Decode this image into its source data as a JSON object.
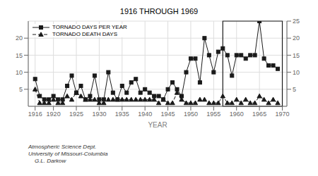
{
  "chart_data": {
    "type": "line",
    "title": "1916 THROUGH 1969",
    "xlabel": "YEAR",
    "x": [
      1916,
      1917,
      1918,
      1919,
      1920,
      1921,
      1922,
      1923,
      1924,
      1925,
      1926,
      1927,
      1928,
      1929,
      1930,
      1931,
      1932,
      1933,
      1934,
      1935,
      1936,
      1937,
      1938,
      1939,
      1940,
      1941,
      1942,
      1943,
      1944,
      1945,
      1946,
      1947,
      1948,
      1949,
      1950,
      1951,
      1952,
      1953,
      1954,
      1955,
      1956,
      1957,
      1958,
      1959,
      1960,
      1961,
      1962,
      1963,
      1964,
      1965,
      1966,
      1967,
      1968,
      1969
    ],
    "series": [
      {
        "name": "TORNADO DAYS PER YEAR",
        "color": "#1a1a1a",
        "marker": "square",
        "line_style": "solid",
        "values": [
          8,
          3,
          2,
          2,
          3,
          2,
          2,
          6,
          9,
          4,
          6,
          2,
          3,
          9,
          2,
          2,
          10,
          4,
          2,
          6,
          4,
          7,
          8,
          4,
          5,
          4,
          3,
          3,
          2,
          5,
          7,
          5,
          3,
          10,
          14,
          14,
          7,
          20,
          15,
          10,
          16,
          17,
          15,
          9,
          15,
          15,
          14,
          15,
          15,
          25,
          14,
          12,
          12,
          11
        ]
      },
      {
        "name": "TORNADO DEATH DAYS",
        "color": "#1a1a1a",
        "marker": "triangle",
        "line_style": "dashed",
        "values": [
          5,
          1,
          1,
          1,
          2,
          1,
          1,
          3,
          2,
          4,
          3,
          2,
          2,
          2,
          1,
          1,
          2,
          2,
          2,
          2,
          2,
          2,
          2,
          2,
          2,
          2,
          2,
          1,
          2,
          1,
          1,
          4,
          2,
          1,
          1,
          1,
          2,
          2,
          1,
          1,
          1,
          3,
          1,
          1,
          2,
          1,
          2,
          1,
          1,
          3,
          2,
          1,
          2,
          1
        ]
      }
    ],
    "xlim": [
      1914.5,
      1971
    ],
    "xticks": [
      1916,
      1920,
      1925,
      1930,
      1935,
      1940,
      1945,
      1950,
      1955,
      1960,
      1965,
      1970
    ],
    "ylim": [
      0,
      25
    ],
    "yticks": [
      5,
      10,
      15,
      20
    ],
    "y2lim": [
      0,
      25
    ],
    "y2ticks": [
      5,
      10,
      15,
      20,
      25
    ],
    "grid": true,
    "legend": "upper left",
    "box": {
      "xlim": [
        1957,
        1970
      ],
      "ylim": [
        0,
        25
      ]
    },
    "annotations": [
      "Atmospheric Science Dept.\nUniversity of Missouri-Columbia\n    G.L. Darkow"
    ]
  }
}
